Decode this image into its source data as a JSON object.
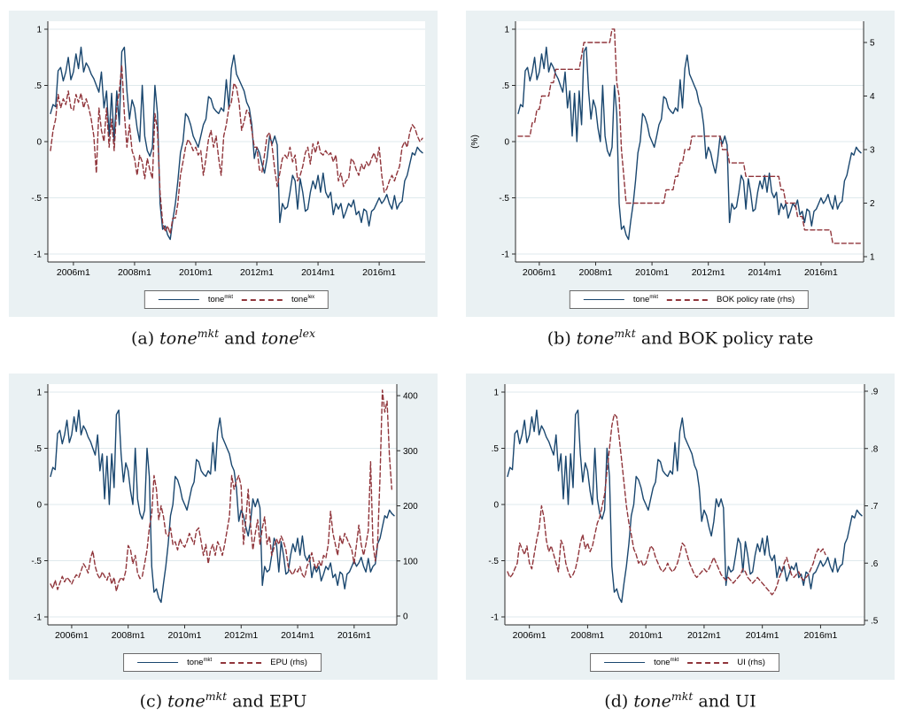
{
  "colors": {
    "navy": "#1a476f",
    "maroon": "#90353b",
    "region_bg": "#eaf1f3",
    "grid": "#dfe9ec",
    "axis": "#2b2b2b",
    "tick_label": "#000000",
    "legend_border": "#6a6a6a",
    "page_bg": "#ffffff"
  },
  "series_values": {
    "tone_mkt": [
      0.25,
      0.33,
      0.31,
      0.63,
      0.66,
      0.54,
      0.62,
      0.75,
      0.55,
      0.62,
      0.78,
      0.65,
      0.84,
      0.62,
      0.7,
      0.66,
      0.6,
      0.56,
      0.5,
      0.44,
      0.62,
      0.3,
      0.45,
      0.05,
      0.43,
      0.0,
      0.45,
      0.15,
      0.8,
      0.84,
      0.45,
      0.2,
      0.37,
      0.3,
      0.12,
      0.0,
      0.5,
      0.05,
      -0.08,
      -0.13,
      -0.05,
      0.5,
      0.25,
      -0.55,
      -0.78,
      -0.75,
      -0.83,
      -0.87,
      -0.7,
      -0.55,
      -0.35,
      -0.1,
      0.0,
      0.25,
      0.22,
      0.15,
      0.05,
      0.0,
      -0.05,
      0.05,
      0.15,
      0.2,
      0.4,
      0.38,
      0.3,
      0.27,
      0.25,
      0.3,
      0.27,
      0.55,
      0.3,
      0.65,
      0.77,
      0.6,
      0.55,
      0.5,
      0.45,
      0.35,
      0.3,
      0.15,
      -0.15,
      -0.05,
      -0.1,
      -0.2,
      -0.28,
      -0.15,
      0.05,
      -0.02,
      0.05,
      -0.03,
      -0.72,
      -0.55,
      -0.6,
      -0.58,
      -0.45,
      -0.3,
      -0.35,
      -0.6,
      -0.33,
      -0.45,
      -0.62,
      -0.6,
      -0.45,
      -0.35,
      -0.42,
      -0.3,
      -0.45,
      -0.28,
      -0.45,
      -0.5,
      -0.45,
      -0.65,
      -0.55,
      -0.6,
      -0.55,
      -0.68,
      -0.62,
      -0.55,
      -0.58,
      -0.52,
      -0.65,
      -0.62,
      -0.72,
      -0.6,
      -0.62,
      -0.75,
      -0.62,
      -0.6,
      -0.55,
      -0.5,
      -0.55,
      -0.52,
      -0.47,
      -0.55,
      -0.6,
      -0.48,
      -0.6,
      -0.55,
      -0.53,
      -0.35,
      -0.3,
      -0.2,
      -0.1,
      -0.12,
      -0.05,
      -0.08,
      -0.1
    ],
    "tone_lex": [
      -0.08,
      0.1,
      0.2,
      0.42,
      0.3,
      0.38,
      0.33,
      0.45,
      0.3,
      0.28,
      0.42,
      0.35,
      0.43,
      0.3,
      0.38,
      0.3,
      0.2,
      0.05,
      -0.28,
      0.3,
      0.1,
      0.0,
      0.3,
      -0.05,
      0.2,
      -0.08,
      0.3,
      0.45,
      0.68,
      0.25,
      -0.05,
      0.15,
      -0.08,
      -0.15,
      -0.3,
      -0.12,
      -0.18,
      -0.33,
      -0.15,
      -0.25,
      -0.33,
      0.25,
      0.1,
      -0.45,
      -0.72,
      -0.8,
      -0.75,
      -0.82,
      -0.68,
      -0.68,
      -0.55,
      -0.3,
      -0.18,
      -0.05,
      0.02,
      -0.02,
      -0.08,
      -0.05,
      -0.12,
      -0.08,
      -0.3,
      -0.15,
      0.02,
      0.1,
      -0.05,
      0.05,
      -0.15,
      -0.3,
      0.05,
      0.15,
      0.3,
      0.35,
      0.52,
      0.48,
      0.35,
      0.1,
      0.18,
      0.28,
      0.25,
      0.1,
      -0.05,
      -0.05,
      -0.25,
      -0.27,
      -0.12,
      0.05,
      0.08,
      -0.05,
      -0.25,
      -0.4,
      -0.28,
      -0.15,
      -0.12,
      -0.15,
      -0.05,
      -0.18,
      -0.12,
      -0.35,
      -0.3,
      -0.22,
      -0.1,
      -0.05,
      -0.2,
      -0.02,
      -0.1,
      0.0,
      -0.1,
      -0.12,
      -0.08,
      -0.12,
      -0.1,
      -0.18,
      -0.12,
      -0.35,
      -0.28,
      -0.4,
      -0.35,
      -0.33,
      -0.15,
      -0.18,
      -0.25,
      -0.3,
      -0.2,
      -0.25,
      -0.18,
      -0.22,
      -0.15,
      -0.1,
      -0.18,
      -0.05,
      -0.3,
      -0.45,
      -0.42,
      -0.35,
      -0.3,
      -0.35,
      -0.28,
      -0.22,
      -0.05,
      0.0,
      -0.05,
      0.08,
      0.15,
      0.12,
      0.05,
      0.0,
      0.03
    ],
    "bok_rate": [
      3.25,
      3.25,
      3.25,
      3.25,
      3.25,
      3.25,
      3.5,
      3.5,
      3.75,
      3.75,
      4.0,
      4.0,
      4.0,
      4.0,
      4.25,
      4.25,
      4.5,
      4.5,
      4.5,
      4.5,
      4.5,
      4.5,
      4.5,
      4.5,
      4.5,
      4.5,
      4.5,
      4.75,
      5.0,
      5.0,
      5.0,
      5.0,
      5.0,
      5.0,
      5.0,
      5.0,
      5.0,
      5.0,
      5.0,
      5.0,
      5.25,
      5.25,
      4.25,
      4.0,
      3.0,
      2.5,
      2.0,
      2.0,
      2.0,
      2.0,
      2.0,
      2.0,
      2.0,
      2.0,
      2.0,
      2.0,
      2.0,
      2.0,
      2.0,
      2.0,
      2.0,
      2.0,
      2.0,
      2.25,
      2.25,
      2.25,
      2.25,
      2.5,
      2.5,
      2.75,
      2.75,
      3.0,
      3.0,
      3.0,
      3.25,
      3.25,
      3.25,
      3.25,
      3.25,
      3.25,
      3.25,
      3.25,
      3.25,
      3.25,
      3.25,
      3.25,
      3.25,
      3.0,
      3.0,
      3.0,
      2.75,
      2.75,
      2.75,
      2.75,
      2.75,
      2.75,
      2.75,
      2.5,
      2.5,
      2.5,
      2.5,
      2.5,
      2.5,
      2.5,
      2.5,
      2.5,
      2.5,
      2.5,
      2.5,
      2.5,
      2.5,
      2.5,
      2.25,
      2.25,
      2.0,
      2.0,
      2.0,
      2.0,
      2.0,
      1.75,
      1.75,
      1.75,
      1.5,
      1.5,
      1.5,
      1.5,
      1.5,
      1.5,
      1.5,
      1.5,
      1.5,
      1.5,
      1.5,
      1.5,
      1.25,
      1.25,
      1.25,
      1.25,
      1.25,
      1.25,
      1.25,
      1.25,
      1.25,
      1.25,
      1.25,
      1.25,
      1.25
    ],
    "epu": [
      58,
      50,
      65,
      48,
      60,
      72,
      62,
      70,
      65,
      58,
      68,
      75,
      70,
      82,
      95,
      88,
      78,
      105,
      118,
      90,
      75,
      68,
      80,
      72,
      65,
      78,
      58,
      70,
      45,
      62,
      70,
      65,
      82,
      128,
      120,
      95,
      110,
      78,
      68,
      72,
      95,
      120,
      160,
      185,
      255,
      230,
      175,
      200,
      180,
      150,
      145,
      160,
      130,
      135,
      120,
      140,
      130,
      125,
      135,
      150,
      140,
      130,
      155,
      160,
      135,
      110,
      130,
      95,
      120,
      130,
      110,
      135,
      125,
      110,
      130,
      155,
      180,
      255,
      230,
      245,
      255,
      235,
      130,
      175,
      230,
      165,
      120,
      150,
      175,
      130,
      160,
      180,
      130,
      145,
      110,
      125,
      140,
      130,
      145,
      135,
      120,
      90,
      80,
      75,
      85,
      80,
      90,
      75,
      70,
      90,
      100,
      115,
      95,
      85,
      100,
      90,
      110,
      105,
      130,
      190,
      150,
      130,
      110,
      145,
      130,
      150,
      140,
      130,
      120,
      95,
      130,
      165,
      130,
      110,
      130,
      155,
      280,
      130,
      100,
      135,
      255,
      410,
      370,
      390,
      290,
      230
    ],
    "ui": [
      0.585,
      0.575,
      0.58,
      0.59,
      0.6,
      0.635,
      0.625,
      0.615,
      0.63,
      0.6,
      0.59,
      0.615,
      0.64,
      0.66,
      0.7,
      0.68,
      0.64,
      0.62,
      0.63,
      0.615,
      0.6,
      0.585,
      0.64,
      0.63,
      0.6,
      0.585,
      0.575,
      0.58,
      0.59,
      0.61,
      0.635,
      0.65,
      0.625,
      0.635,
      0.62,
      0.63,
      0.65,
      0.67,
      0.68,
      0.7,
      0.72,
      0.76,
      0.8,
      0.84,
      0.86,
      0.855,
      0.82,
      0.78,
      0.74,
      0.7,
      0.67,
      0.65,
      0.625,
      0.615,
      0.6,
      0.605,
      0.595,
      0.6,
      0.615,
      0.63,
      0.625,
      0.61,
      0.6,
      0.59,
      0.585,
      0.59,
      0.6,
      0.59,
      0.585,
      0.59,
      0.6,
      0.615,
      0.635,
      0.63,
      0.615,
      0.6,
      0.59,
      0.58,
      0.575,
      0.58,
      0.585,
      0.59,
      0.585,
      0.59,
      0.6,
      0.61,
      0.6,
      0.59,
      0.58,
      0.575,
      0.57,
      0.575,
      0.57,
      0.565,
      0.57,
      0.575,
      0.58,
      0.59,
      0.585,
      0.575,
      0.57,
      0.565,
      0.57,
      0.575,
      0.57,
      0.565,
      0.56,
      0.555,
      0.55,
      0.545,
      0.55,
      0.56,
      0.575,
      0.585,
      0.6,
      0.61,
      0.595,
      0.58,
      0.575,
      0.58,
      0.585,
      0.575,
      0.57,
      0.575,
      0.58,
      0.59,
      0.6,
      0.615,
      0.625,
      0.62,
      0.625,
      0.615
    ]
  },
  "chart_data": [
    {
      "key": "a",
      "type": "line",
      "x_start": "2005m4",
      "caption": {
        "label": "(a)",
        "t1": "tone",
        "t1_sup": "mkt",
        "mid": "and",
        "t2": "tone",
        "t2_sup": "lex"
      },
      "legend": [
        {
          "label": "tone",
          "label_sup": "mkt",
          "style": "solid"
        },
        {
          "label": "tone",
          "label_sup": "lex",
          "style": "dashed"
        }
      ],
      "x_ticks": [
        {
          "m": 9,
          "label": "2006m1"
        },
        {
          "m": 33,
          "label": "2008m1"
        },
        {
          "m": 57,
          "label": "2010m1"
        },
        {
          "m": 81,
          "label": "2012m1"
        },
        {
          "m": 105,
          "label": "2014m1"
        },
        {
          "m": 129,
          "label": "2016m1"
        }
      ],
      "left_axis": {
        "range": [
          -1,
          1
        ],
        "ticks": [
          {
            "v": 1,
            "label": "1"
          },
          {
            "v": 0.5,
            "label": ".5"
          },
          {
            "v": 0,
            "label": "0"
          },
          {
            "v": -0.5,
            "label": "-.5"
          },
          {
            "v": -1,
            "label": "-1"
          }
        ]
      },
      "right_axis": null,
      "series": [
        {
          "name": "tone_mkt",
          "axis": "left",
          "dash": false,
          "color_key": "navy",
          "values_ref": "tone_mkt"
        },
        {
          "name": "tone_lex",
          "axis": "left",
          "dash": true,
          "color_key": "maroon",
          "values_ref": "tone_lex"
        }
      ]
    },
    {
      "key": "b",
      "type": "line",
      "x_start": "2005m4",
      "caption": {
        "label": "(b)",
        "t1": "tone",
        "t1_sup": "mkt",
        "mid": "and",
        "t2": "BOK policy rate",
        "t2_sup": ""
      },
      "legend": [
        {
          "label": "tone",
          "label_sup": "mkt",
          "style": "solid"
        },
        {
          "label": "BOK policy rate (rhs)",
          "label_sup": "",
          "style": "dashed"
        }
      ],
      "x_ticks": [
        {
          "m": 9,
          "label": "2006m1"
        },
        {
          "m": 33,
          "label": "2008m1"
        },
        {
          "m": 57,
          "label": "2010m1"
        },
        {
          "m": 81,
          "label": "2012m1"
        },
        {
          "m": 105,
          "label": "2014m1"
        },
        {
          "m": 129,
          "label": "2016m1"
        }
      ],
      "left_axis": {
        "range": [
          -1,
          1
        ],
        "unit_label": "(%)",
        "ticks": [
          {
            "v": 1,
            "label": "1"
          },
          {
            "v": 0.5,
            "label": ".5"
          },
          {
            "v": 0,
            "label": "0"
          },
          {
            "v": -0.5,
            "label": "-.5"
          },
          {
            "v": -1,
            "label": "-1"
          }
        ]
      },
      "right_axis": {
        "range": [
          1,
          5
        ],
        "ticks": [
          {
            "v": 5,
            "label": "5"
          },
          {
            "v": 4,
            "label": "4"
          },
          {
            "v": 3,
            "label": "3"
          },
          {
            "v": 2,
            "label": "2"
          },
          {
            "v": 1,
            "label": "1"
          }
        ]
      },
      "series": [
        {
          "name": "tone_mkt",
          "axis": "left",
          "dash": false,
          "color_key": "navy",
          "values_ref": "tone_mkt"
        },
        {
          "name": "bok_policy_rate",
          "axis": "right",
          "dash": true,
          "color_key": "maroon",
          "values_ref": "bok_rate"
        }
      ]
    },
    {
      "key": "c",
      "type": "line",
      "x_start": "2005m4",
      "caption": {
        "label": "(c)",
        "t1": "tone",
        "t1_sup": "mkt",
        "mid": "and",
        "t2": "EPU",
        "t2_sup": ""
      },
      "legend": [
        {
          "label": "tone",
          "label_sup": "mkt",
          "style": "solid"
        },
        {
          "label": "EPU (rhs)",
          "label_sup": "",
          "style": "dashed"
        }
      ],
      "x_ticks": [
        {
          "m": 9,
          "label": "2006m1"
        },
        {
          "m": 33,
          "label": "2008m1"
        },
        {
          "m": 57,
          "label": "2010m1"
        },
        {
          "m": 81,
          "label": "2012m1"
        },
        {
          "m": 105,
          "label": "2014m1"
        },
        {
          "m": 129,
          "label": "2016m1"
        }
      ],
      "left_axis": {
        "range": [
          -1,
          1
        ],
        "ticks": [
          {
            "v": 1,
            "label": "1"
          },
          {
            "v": 0.5,
            "label": ".5"
          },
          {
            "v": 0,
            "label": "0"
          },
          {
            "v": -0.5,
            "label": "-.5"
          },
          {
            "v": -1,
            "label": "-1"
          }
        ]
      },
      "right_axis": {
        "range": [
          0,
          400
        ],
        "ticks": [
          {
            "v": 400,
            "label": "400"
          },
          {
            "v": 300,
            "label": "300"
          },
          {
            "v": 200,
            "label": "200"
          },
          {
            "v": 100,
            "label": "100"
          },
          {
            "v": 0,
            "label": "0"
          }
        ]
      },
      "series": [
        {
          "name": "tone_mkt",
          "axis": "left",
          "dash": false,
          "color_key": "navy",
          "values_ref": "tone_mkt"
        },
        {
          "name": "epu",
          "axis": "right",
          "dash": true,
          "color_key": "maroon",
          "values_ref": "epu"
        }
      ]
    },
    {
      "key": "d",
      "type": "line",
      "x_start": "2005m4",
      "caption": {
        "label": "(d)",
        "t1": "tone",
        "t1_sup": "mkt",
        "mid": "and",
        "t2": "UI",
        "t2_sup": ""
      },
      "legend": [
        {
          "label": "tone",
          "label_sup": "mkt",
          "style": "solid"
        },
        {
          "label": "UI (rhs)",
          "label_sup": "",
          "style": "dashed"
        }
      ],
      "x_ticks": [
        {
          "m": 9,
          "label": "2006m1"
        },
        {
          "m": 33,
          "label": "2008m1"
        },
        {
          "m": 57,
          "label": "2010m1"
        },
        {
          "m": 81,
          "label": "2012m1"
        },
        {
          "m": 105,
          "label": "2014m1"
        },
        {
          "m": 129,
          "label": "2016m1"
        }
      ],
      "left_axis": {
        "range": [
          -1,
          1
        ],
        "ticks": [
          {
            "v": 1,
            "label": "1"
          },
          {
            "v": 0.5,
            "label": ".5"
          },
          {
            "v": 0,
            "label": "0"
          },
          {
            "v": -0.5,
            "label": "-.5"
          },
          {
            "v": -1,
            "label": "-1"
          }
        ]
      },
      "right_axis": {
        "range": [
          0.5,
          0.9
        ],
        "ticks": [
          {
            "v": 0.9,
            "label": ".9"
          },
          {
            "v": 0.8,
            "label": ".8"
          },
          {
            "v": 0.7,
            "label": ".7"
          },
          {
            "v": 0.6,
            "label": ".6"
          },
          {
            "v": 0.5,
            "label": ".5"
          }
        ]
      },
      "series": [
        {
          "name": "tone_mkt",
          "axis": "left",
          "dash": false,
          "color_key": "navy",
          "values_ref": "tone_mkt"
        },
        {
          "name": "ui",
          "axis": "right",
          "dash": true,
          "color_key": "maroon",
          "values_ref": "ui"
        }
      ]
    }
  ]
}
